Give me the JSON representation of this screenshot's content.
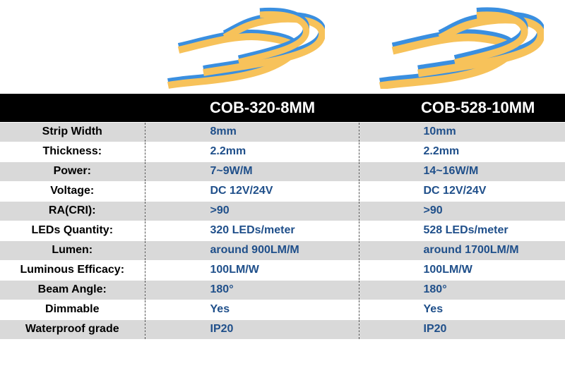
{
  "products": [
    {
      "name": "COB-320-8MM"
    },
    {
      "name": "COB-528-10MM"
    }
  ],
  "rows": [
    {
      "label": "Strip Width",
      "values": [
        "8mm",
        "10mm"
      ]
    },
    {
      "label": "Thickness:",
      "values": [
        "2.2mm",
        "2.2mm"
      ]
    },
    {
      "label": "Power:",
      "values": [
        "7~9W/M",
        "14~16W/M"
      ]
    },
    {
      "label": "Voltage:",
      "values": [
        "DC 12V/24V",
        "DC 12V/24V"
      ]
    },
    {
      "label": "RA(CRI):",
      "values": [
        ">90",
        ">90"
      ]
    },
    {
      "label": "LEDs Quantity:",
      "values": [
        "320 LEDs/meter",
        "528 LEDs/meter"
      ]
    },
    {
      "label": "Lumen:",
      "values": [
        "around 900LM/M",
        "around 1700LM/M"
      ]
    },
    {
      "label": "Luminous Efficacy:",
      "values": [
        "100LM/W",
        "100LM/W"
      ]
    },
    {
      "label": "Beam Angle:",
      "values": [
        "180°",
        "180°"
      ]
    },
    {
      "label": "Dimmable",
      "values": [
        "Yes",
        "Yes"
      ]
    },
    {
      "label": "Waterproof grade",
      "values": [
        "IP20",
        "IP20"
      ]
    }
  ],
  "colors": {
    "header_bg": "#000000",
    "value_text": "#1f4f8a",
    "stripe": "#d9d9d9",
    "strip_blue": "#3a8fe0",
    "strip_yellow": "#f7c25a"
  }
}
